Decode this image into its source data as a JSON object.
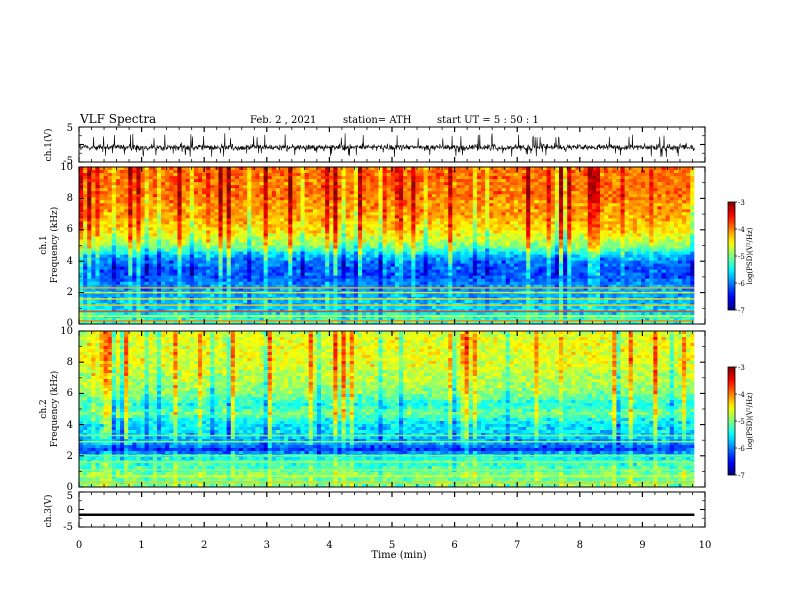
{
  "header": {
    "title": "VLF Spectra",
    "date": "Feb. 2  , 2021",
    "station": "station= ATH",
    "start": "start  UT  =   5  : 50 : 1"
  },
  "chart_data": [
    {
      "type": "line",
      "name": "ch1-waveform",
      "ylabel": "ch.1(V)",
      "xlim": [
        0,
        10
      ],
      "ylim": [
        -5,
        5
      ],
      "yticks": [
        "5",
        "-5"
      ],
      "data_xmax": 9.83,
      "description_level": "noisy signal roughly between -3 and 1 V with spikes to about 3 V",
      "mean": -0.8,
      "spread": 1.1,
      "spike_max": 3.2,
      "spike_min": -3.6
    },
    {
      "type": "heatmap",
      "name": "ch1-spectrogram",
      "ylabel_line1": "ch.1",
      "ylabel_line2": "Frequency  (kHz)",
      "xlim": [
        0,
        10
      ],
      "ylim": [
        0,
        10
      ],
      "yticks": [
        "0",
        "2",
        "4",
        "6",
        "8",
        "10"
      ],
      "data_xmax": 9.83,
      "colorbar": {
        "label": "log(PSD)(V²/Hz)",
        "range": [
          -7,
          -3
        ],
        "ticks": [
          "-3",
          "-4",
          "-5",
          "-6",
          "-7"
        ]
      },
      "profile_khz": [
        0,
        0.4,
        0.8,
        1.2,
        1.6,
        2.0,
        2.4,
        2.8,
        3.2,
        3.6,
        4.0,
        4.4,
        4.8,
        5.2,
        5.6,
        6.0,
        6.4,
        6.8,
        7.2,
        7.6,
        8.0,
        8.4,
        8.8,
        9.2,
        9.6,
        10.0
      ],
      "profile_logpsd": [
        -5.2,
        -5.4,
        -5.6,
        -5.7,
        -5.8,
        -5.9,
        -5.9,
        -6.1,
        -6.2,
        -6.2,
        -6.0,
        -5.7,
        -5.1,
        -4.8,
        -4.6,
        -4.4,
        -4.3,
        -4.2,
        -4.1,
        -4.1,
        -4.0,
        -3.9,
        -4.0,
        -3.9,
        -3.9,
        -4.0
      ],
      "lines_khz": [
        0.2,
        0.5,
        0.8,
        1.2,
        1.6,
        2.0,
        2.3
      ],
      "lines_logpsd": [
        -4.0,
        -4.5,
        -3.7,
        -4.3,
        -4.4,
        -4.6,
        -4.2
      ]
    },
    {
      "type": "heatmap",
      "name": "ch2-spectrogram",
      "ylabel_line1": "ch.2",
      "ylabel_line2": "Frequency  (kHz)",
      "xlim": [
        0,
        10
      ],
      "ylim": [
        0,
        10
      ],
      "yticks": [
        "0",
        "2",
        "4",
        "6",
        "8",
        "10"
      ],
      "data_xmax": 9.83,
      "colorbar": {
        "label": "log(PSD)(V²/Hz)",
        "range": [
          -7,
          -3
        ],
        "ticks": [
          "-3",
          "-4",
          "-5",
          "-6",
          "-7"
        ]
      },
      "profile_khz": [
        0,
        0.4,
        0.8,
        1.2,
        1.6,
        2.0,
        2.4,
        2.8,
        3.2,
        3.6,
        4.0,
        4.4,
        4.8,
        5.2,
        5.6,
        6.0,
        6.4,
        6.8,
        7.2,
        7.6,
        8.0,
        8.4,
        8.8,
        9.2,
        9.6,
        10.0
      ],
      "profile_logpsd": [
        -5.0,
        -5.1,
        -5.0,
        -5.2,
        -5.3,
        -5.6,
        -6.3,
        -5.9,
        -5.7,
        -5.6,
        -5.6,
        -5.3,
        -5.0,
        -5.4,
        -5.2,
        -5.0,
        -4.9,
        -4.8,
        -4.8,
        -4.7,
        -4.6,
        -4.6,
        -4.6,
        -4.6,
        -4.6,
        -4.7
      ],
      "lines_khz": [
        0.3,
        0.7,
        1.1,
        1.6,
        2.0,
        2.9,
        3.3
      ],
      "lines_logpsd": [
        -4.3,
        -4.6,
        -4.9,
        -4.8,
        -4.9,
        -4.9,
        -5.0
      ]
    },
    {
      "type": "line",
      "name": "ch3-waveform",
      "ylabel": "ch.3(V)",
      "xlabel": "Time  (min)",
      "xlim": [
        0,
        10
      ],
      "ylim": [
        -5,
        5
      ],
      "yticks": [
        "5",
        "0",
        "-5"
      ],
      "xticks": [
        "0",
        "1",
        "2",
        "3",
        "4",
        "5",
        "6",
        "7",
        "8",
        "9",
        "10"
      ],
      "data_xmax": 9.83,
      "level": -1.5,
      "band_halfwidth": 0.35
    }
  ]
}
